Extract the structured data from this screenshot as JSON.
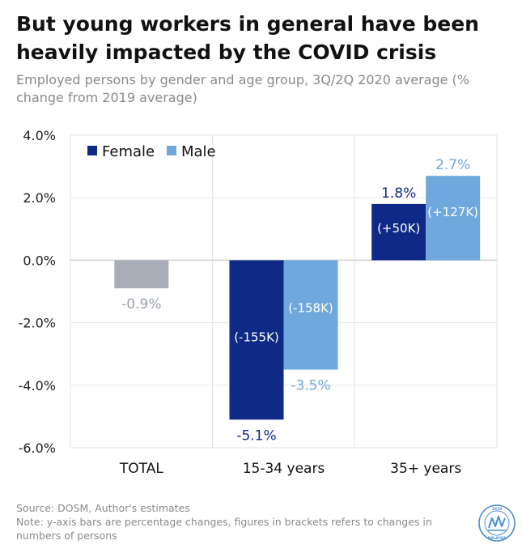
{
  "header": {
    "title": "But young workers in general have been heavily impacted by the COVID crisis",
    "subtitle": "Employed persons by gender and age group, 3Q/2Q 2020 average (% change from 2019 average)"
  },
  "footer": {
    "source": "Source: DOSM, Author's estimates",
    "note": "Note: y-axis bars are percentage changes, figures in brackets refers to changes in numbers of persons"
  },
  "colors": {
    "female": "#0f2a86",
    "male": "#6fa8dc",
    "total": "#a9adb8",
    "total_label": "#9aa0ab"
  },
  "logo": {
    "icon": "institute-seal-logo",
    "text_top": "1919",
    "text_bottom": "MALAYSIA"
  },
  "chart_data": {
    "type": "bar",
    "categories": [
      "TOTAL",
      "15-34 years",
      "35+ years"
    ],
    "ylim": [
      -6.0,
      4.0
    ],
    "yticks": [
      "4.0%",
      "2.0%",
      "0.0%",
      "-2.0%",
      "-4.0%",
      "-6.0%"
    ],
    "grid": true,
    "legend_position": "top-left",
    "total": {
      "value": -0.9,
      "label": "-0.9%"
    },
    "series": [
      {
        "name": "Female",
        "values": [
          null,
          -5.1,
          1.8
        ],
        "labels": [
          null,
          "-5.1%",
          "1.8%"
        ],
        "counts": [
          null,
          "(-155K)",
          "(+50K)"
        ]
      },
      {
        "name": "Male",
        "values": [
          null,
          -3.5,
          2.7
        ],
        "labels": [
          null,
          "-3.5%",
          "2.7%"
        ],
        "counts": [
          null,
          "(-158K)",
          "(+127K)"
        ]
      }
    ],
    "xlabel": "",
    "ylabel": ""
  }
}
